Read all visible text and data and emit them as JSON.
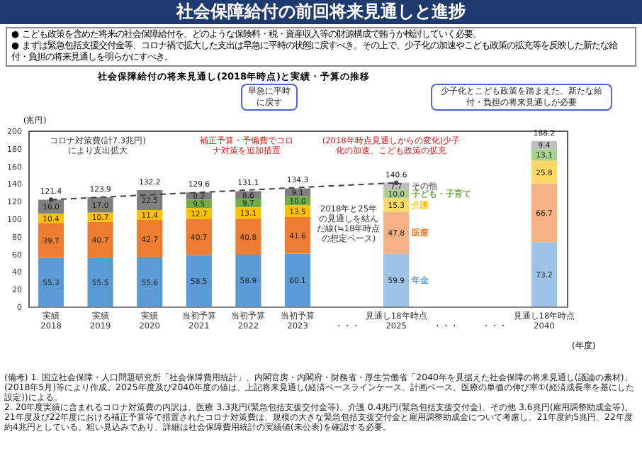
{
  "chart_data": {
    "type": "bar",
    "stacked": true,
    "title": "社会保障給付の前回将来見通しと進捗",
    "subtitle": "社会保障給付の将来見通し(2018年時点)と実績・予算の推移",
    "ylabel": "(兆円)",
    "xlabel": "(年度)",
    "categories": [
      "実績\n2018",
      "実績\n2019",
      "実績\n2020",
      "当初予算\n2021",
      "当初予算\n2022",
      "当初予算\n2023",
      "・・・",
      "見通し18年時点\n2025",
      "・・・",
      "・・・",
      "見通し18年時点\n2040"
    ],
    "ylim": [
      0,
      200
    ],
    "yticks": [
      0,
      20,
      40,
      60,
      80,
      100,
      120,
      140,
      160,
      180,
      200
    ],
    "grid": false,
    "legend": false,
    "totals": [
      "121.4",
      "123.9",
      "132.2",
      "129.6",
      "131.1",
      "134.3",
      null,
      "140.6",
      null,
      null,
      "188.2"
    ],
    "series": [
      {
        "name": "年金",
        "color": "#5b9bd5",
        "colors": [
          "#5b9bd5",
          "#5b9bd5",
          "#5b9bd5",
          "#5b9bd5",
          "#5b9bd5",
          "#5b9bd5",
          null,
          "#9dc3e6",
          null,
          null,
          "#9dc3e6"
        ],
        "values": [
          55.3,
          55.5,
          55.6,
          58.5,
          58.9,
          60.1,
          null,
          59.9,
          null,
          null,
          73.2
        ],
        "value_labels": [
          "55.3",
          "55.5",
          "55.6",
          "58.5",
          "58.9",
          "60.1",
          null,
          "59.9",
          null,
          null,
          "73.2"
        ]
      },
      {
        "name": "医療",
        "color": "#ed7d31",
        "colors": [
          "#ed7d31",
          "#ed7d31",
          "#ed7d31",
          "#ed7d31",
          "#ed7d31",
          "#ed7d31",
          null,
          "#f4b183",
          null,
          null,
          "#f4b183"
        ],
        "values": [
          39.7,
          40.7,
          42.7,
          40.7,
          40.8,
          41.6,
          null,
          47.8,
          null,
          null,
          66.7
        ],
        "value_labels": [
          "39.7",
          "40.7",
          "42.7",
          "40.7",
          "40.8",
          "41.6",
          null,
          "47.8",
          null,
          null,
          "66.7"
        ]
      },
      {
        "name": "介護",
        "color": "#ffc000",
        "colors": [
          "#ffc000",
          "#ffc000",
          "#ffc000",
          "#ffc000",
          "#ffc000",
          "#ffc000",
          null,
          "#ffd966",
          null,
          null,
          "#ffd966"
        ],
        "values": [
          10.4,
          10.7,
          11.4,
          12.7,
          13.1,
          13.5,
          null,
          15.3,
          null,
          null,
          25.8
        ],
        "value_labels": [
          "10.4",
          "10.7",
          "11.4",
          "12.7",
          "13.1",
          "13.5",
          null,
          "15.3",
          null,
          null,
          "25.8"
        ]
      },
      {
        "name": "子ども・子育て",
        "color": "#70ad47",
        "colors": [
          null,
          null,
          null,
          "#70ad47",
          "#70ad47",
          "#70ad47",
          null,
          "#a9d18e",
          null,
          null,
          "#a9d18e"
        ],
        "values": [
          null,
          null,
          null,
          9.5,
          9.7,
          10.0,
          null,
          10.0,
          null,
          null,
          13.1
        ],
        "value_labels": [
          null,
          null,
          null,
          "9.5",
          "9.7",
          "10.0",
          null,
          "10.0",
          null,
          null,
          "13.1"
        ]
      },
      {
        "name": "その他",
        "color": "#7f7f7f",
        "colors": [
          "#7f7f7f",
          "#7f7f7f",
          "#7f7f7f",
          "#7f7f7f",
          "#7f7f7f",
          "#7f7f7f",
          null,
          "#bfbfbf",
          null,
          null,
          "#bfbfbf"
        ],
        "values": [
          16.0,
          17.0,
          22.5,
          8.2,
          8.6,
          9.1,
          null,
          7.7,
          null,
          null,
          9.4
        ],
        "value_labels": [
          "16.0",
          "17.0",
          "22.5",
          "8.2",
          "8.6",
          "9.1",
          null,
          "7.7",
          null,
          null,
          "9.4"
        ]
      },
      {
        "type": "line",
        "x": [
          "実績\n2018",
          "見通し18年時点\n2025"
        ],
        "values": [
          121.4,
          140.6
        ],
        "color": "#404040",
        "line_style": "dashed",
        "marker": "circle"
      }
    ],
    "annotations": [
      "● こども政策を含めた将来の社会保障給付を、どのような保険料・税・資産収入等の財源構成で賄うか検討していく必要。",
      "● まずは緊急包括支援交付金等、コロナ禍で拡大した支出は早急に平時の状態に戻すべき。その上で、少子化の加速やこども政策の拡充等を反映した新たな給付・負担の将来見通しを明らかにすべき。",
      "早急に平時に戻す",
      "少子化とこども政策を踏まえた、新たな給付・負担の将来見通しが必要",
      "コロナ対策費(計7.3兆円)により支出拡大",
      "補正予算・予備費でコロナ対策を追加措置",
      "(2018年時点見通しからの変化)少子化の加速、こども政策の拡充",
      "2018年と25年の見通しを結んだ線(≒18年時点の想定ベース)",
      "(備考) 1. 国立社会保障・人口問題研究所「社会保障費用統計」、内閣官房・内閣府・財務省・厚生労働省「2040年を見据えた社会保障の将来見通し(議論の素材)」(2018年5月)等により作成。2025年度及び2040年度の値は、上記将来見通し(経済ベースラインケース、計画ベース、医療の単価の伸び率①(経済成長率を基にした設定))による。",
      "2. 20年度実績に含まれるコロナ対策費の内訳は、医療 3.3兆円(緊急包括支援交付金等)、介護 0.4兆円(緊急包括支援交付金)、その他 3.6兆円(雇用調整助成金等)。21年度及び22年度における補正予算等で措置されたコロナ対策費は、規模の大きな緊急包括支援交付金と雇用調整助成金について考慮し、21年度約5兆円、22年度約4兆円としている。粗い見込みであり、詳細は社会保障費用統計の実績値(未公表)を確認する必要。"
    ]
  }
}
